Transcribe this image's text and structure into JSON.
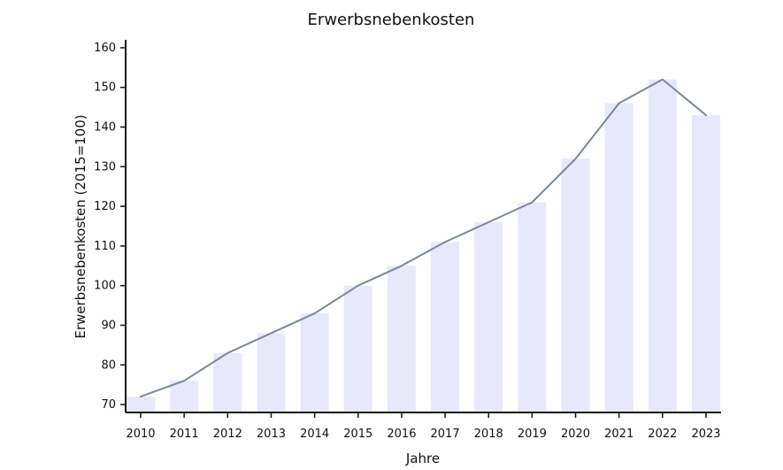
{
  "chart_data": {
    "type": "bar",
    "title": "Erwerbsnebenkosten",
    "xlabel": "Jahre",
    "ylabel": "Erwerbsnebenkosten (2015=100)",
    "categories": [
      "2010",
      "2011",
      "2012",
      "2013",
      "2014",
      "2015",
      "2016",
      "2017",
      "2018",
      "2019",
      "2020",
      "2021",
      "2022",
      "2023"
    ],
    "series": [
      {
        "values": [
          72,
          76,
          83,
          88,
          93,
          100,
          105,
          111,
          116,
          121,
          132,
          146,
          152,
          143
        ]
      }
    ],
    "overlay_line": true,
    "ylim": [
      68,
      162
    ],
    "yticks": [
      70,
      80,
      90,
      100,
      110,
      120,
      130,
      140,
      150,
      160
    ],
    "grid": false,
    "colors": {
      "bar_fill": "#e8e8fb",
      "line": "#7a879a",
      "axis": "#111111"
    }
  }
}
